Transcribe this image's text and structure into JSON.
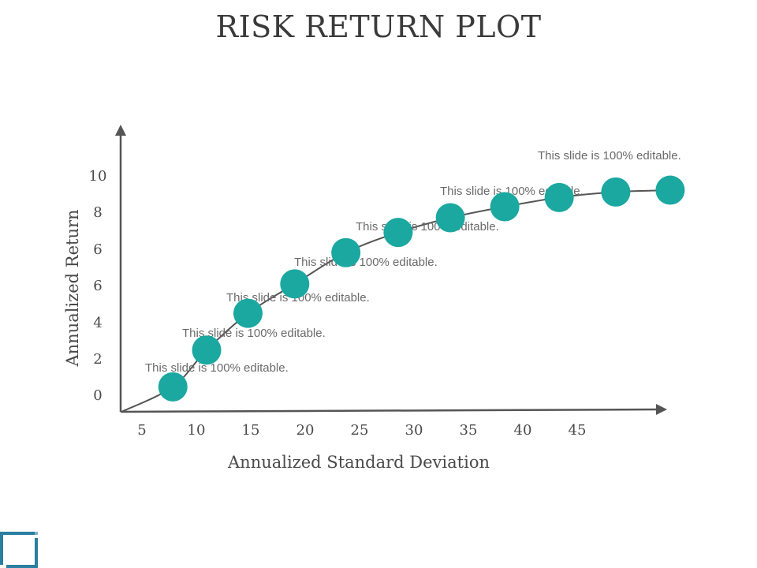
{
  "chart_data": {
    "type": "scatter",
    "title": "RISK RETURN PLOT",
    "xlabel": "Annualized Standard Deviation",
    "ylabel": "Annualized Return",
    "x_tick_labels": [
      "5",
      "10",
      "15",
      "20",
      "25",
      "30",
      "35",
      "40",
      "45"
    ],
    "y_tick_labels": [
      "0",
      "2",
      "4",
      "6",
      "6",
      "8",
      "10"
    ],
    "series": [
      {
        "x": [
          4.8,
          7.9,
          11.7,
          16.0,
          20.7,
          25.5,
          30.3,
          35.3,
          40.3,
          45.5,
          50.5
        ],
        "y": [
          0.5,
          2.5,
          4.5,
          6.1,
          7.8,
          8.9,
          9.7,
          10.3,
          10.8,
          11.1,
          11.2
        ]
      }
    ],
    "annotations": [
      "This slide is 100% editable.",
      "This slide is 100% editable.",
      "This slide is 100% editable.",
      "This slide is 100% editable.",
      "This slide is 100% editable.",
      "This slide is 100% editable.",
      "This slide is 100% editable."
    ],
    "grid": false,
    "legend": "none",
    "colors": {
      "marker": "#1aa8a0",
      "line": "#555555",
      "axis": "#555555",
      "logo": "#2a7ea0"
    }
  }
}
